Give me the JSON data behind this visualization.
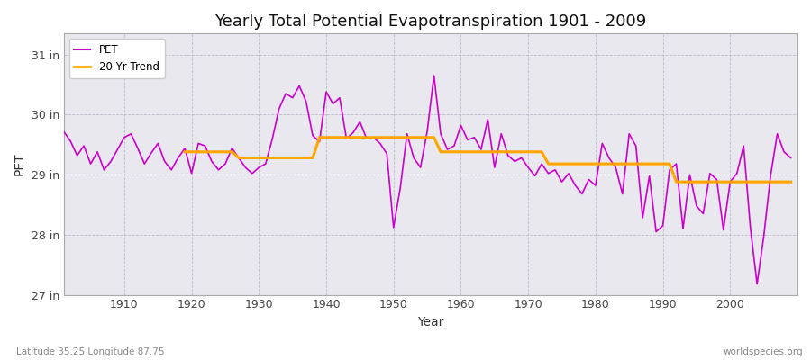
{
  "title": "Yearly Total Potential Evapotranspiration 1901 - 2009",
  "xlabel": "Year",
  "ylabel": "PET",
  "footnote_left": "Latitude 35.25 Longitude 87.75",
  "footnote_right": "worldspecies.org",
  "pet_color": "#CC00CC",
  "trend_color": "#FFA500",
  "fig_bg": "#FFFFFF",
  "plot_bg": "#E8E8EE",
  "ylim": [
    27.0,
    31.35
  ],
  "yticks": [
    27,
    28,
    29,
    30,
    31
  ],
  "ytick_labels": [
    "27 in",
    "28 in",
    "29 in",
    "30 in",
    "31 in"
  ],
  "xlim": [
    1901,
    2010
  ],
  "xticks": [
    1910,
    1920,
    1930,
    1940,
    1950,
    1960,
    1970,
    1980,
    1990,
    2000
  ],
  "years": [
    1901,
    1902,
    1903,
    1904,
    1905,
    1906,
    1907,
    1908,
    1909,
    1910,
    1911,
    1912,
    1913,
    1914,
    1915,
    1916,
    1917,
    1918,
    1919,
    1920,
    1921,
    1922,
    1923,
    1924,
    1925,
    1926,
    1927,
    1928,
    1929,
    1930,
    1931,
    1932,
    1933,
    1934,
    1935,
    1936,
    1937,
    1938,
    1939,
    1940,
    1941,
    1942,
    1943,
    1944,
    1945,
    1946,
    1947,
    1948,
    1949,
    1950,
    1951,
    1952,
    1953,
    1954,
    1955,
    1956,
    1957,
    1958,
    1959,
    1960,
    1961,
    1962,
    1963,
    1964,
    1965,
    1966,
    1967,
    1968,
    1969,
    1970,
    1971,
    1972,
    1973,
    1974,
    1975,
    1976,
    1977,
    1978,
    1979,
    1980,
    1981,
    1982,
    1983,
    1984,
    1985,
    1986,
    1987,
    1988,
    1989,
    1990,
    1991,
    1992,
    1993,
    1994,
    1995,
    1996,
    1997,
    1998,
    1999,
    2000,
    2001,
    2002,
    2003,
    2004,
    2005,
    2006,
    2007,
    2008,
    2009
  ],
  "pet": [
    29.72,
    29.56,
    29.32,
    29.48,
    29.18,
    29.38,
    29.08,
    29.22,
    29.42,
    29.62,
    29.68,
    29.44,
    29.18,
    29.36,
    29.52,
    29.22,
    29.08,
    29.28,
    29.44,
    29.02,
    29.52,
    29.48,
    29.22,
    29.08,
    29.18,
    29.44,
    29.28,
    29.12,
    29.02,
    29.12,
    29.18,
    29.6,
    30.1,
    30.35,
    30.28,
    30.48,
    30.22,
    29.65,
    29.55,
    30.38,
    30.18,
    30.28,
    29.6,
    29.7,
    29.88,
    29.6,
    29.62,
    29.52,
    29.35,
    28.12,
    28.78,
    29.68,
    29.28,
    29.12,
    29.72,
    30.65,
    29.68,
    29.42,
    29.48,
    29.82,
    29.58,
    29.62,
    29.42,
    29.92,
    29.12,
    29.68,
    29.32,
    29.22,
    29.28,
    29.12,
    28.98,
    29.18,
    29.02,
    29.08,
    28.88,
    29.02,
    28.82,
    28.68,
    28.92,
    28.82,
    29.52,
    29.28,
    29.12,
    28.68,
    29.68,
    29.48,
    28.28,
    28.98,
    28.05,
    28.15,
    29.08,
    29.18,
    28.1,
    29.0,
    28.48,
    28.35,
    29.02,
    28.92,
    28.08,
    28.88,
    29.02,
    29.48,
    28.12,
    27.18,
    27.98,
    28.98,
    29.68,
    29.38,
    29.28
  ],
  "trend_years_vals": [
    [
      1919,
      29.38
    ],
    [
      1920,
      29.38
    ],
    [
      1921,
      29.38
    ],
    [
      1922,
      29.38
    ],
    [
      1923,
      29.38
    ],
    [
      1924,
      29.38
    ],
    [
      1925,
      29.38
    ],
    [
      1926,
      29.38
    ],
    [
      1927,
      29.28
    ],
    [
      1928,
      29.28
    ],
    [
      1929,
      29.28
    ],
    [
      1930,
      29.28
    ],
    [
      1931,
      29.28
    ],
    [
      1932,
      29.28
    ],
    [
      1933,
      29.28
    ],
    [
      1934,
      29.28
    ],
    [
      1935,
      29.28
    ],
    [
      1936,
      29.28
    ],
    [
      1937,
      29.28
    ],
    [
      1938,
      29.28
    ],
    [
      1939,
      29.62
    ],
    [
      1940,
      29.62
    ],
    [
      1941,
      29.62
    ],
    [
      1942,
      29.62
    ],
    [
      1943,
      29.62
    ],
    [
      1944,
      29.62
    ],
    [
      1945,
      29.62
    ],
    [
      1946,
      29.62
    ],
    [
      1947,
      29.62
    ],
    [
      1948,
      29.62
    ],
    [
      1949,
      29.62
    ],
    [
      1950,
      29.62
    ],
    [
      1951,
      29.62
    ],
    [
      1952,
      29.62
    ],
    [
      1953,
      29.62
    ],
    [
      1954,
      29.62
    ],
    [
      1955,
      29.62
    ],
    [
      1956,
      29.62
    ],
    [
      1957,
      29.38
    ],
    [
      1958,
      29.38
    ],
    [
      1959,
      29.38
    ],
    [
      1960,
      29.38
    ],
    [
      1961,
      29.38
    ],
    [
      1962,
      29.38
    ],
    [
      1963,
      29.38
    ],
    [
      1964,
      29.38
    ],
    [
      1965,
      29.38
    ],
    [
      1966,
      29.38
    ],
    [
      1967,
      29.38
    ],
    [
      1968,
      29.38
    ],
    [
      1969,
      29.38
    ],
    [
      1970,
      29.38
    ],
    [
      1971,
      29.38
    ],
    [
      1972,
      29.38
    ],
    [
      1973,
      29.18
    ],
    [
      1974,
      29.18
    ],
    [
      1975,
      29.18
    ],
    [
      1976,
      29.18
    ],
    [
      1977,
      29.18
    ],
    [
      1978,
      29.18
    ],
    [
      1979,
      29.18
    ],
    [
      1980,
      29.18
    ],
    [
      1981,
      29.18
    ],
    [
      1982,
      29.18
    ],
    [
      1983,
      29.18
    ],
    [
      1984,
      29.18
    ],
    [
      1985,
      29.18
    ],
    [
      1986,
      29.18
    ],
    [
      1987,
      29.18
    ],
    [
      1988,
      29.18
    ],
    [
      1989,
      29.18
    ],
    [
      1990,
      29.18
    ],
    [
      1991,
      29.18
    ],
    [
      1992,
      28.88
    ],
    [
      1993,
      28.88
    ],
    [
      1994,
      28.88
    ],
    [
      1995,
      28.88
    ],
    [
      1996,
      28.88
    ],
    [
      1997,
      28.88
    ],
    [
      1998,
      28.88
    ],
    [
      1999,
      28.88
    ],
    [
      2000,
      28.88
    ],
    [
      2001,
      28.88
    ],
    [
      2002,
      28.88
    ],
    [
      2003,
      28.88
    ],
    [
      2004,
      28.88
    ],
    [
      2005,
      28.88
    ],
    [
      2006,
      28.88
    ],
    [
      2007,
      28.88
    ],
    [
      2008,
      28.88
    ],
    [
      2009,
      28.88
    ]
  ]
}
